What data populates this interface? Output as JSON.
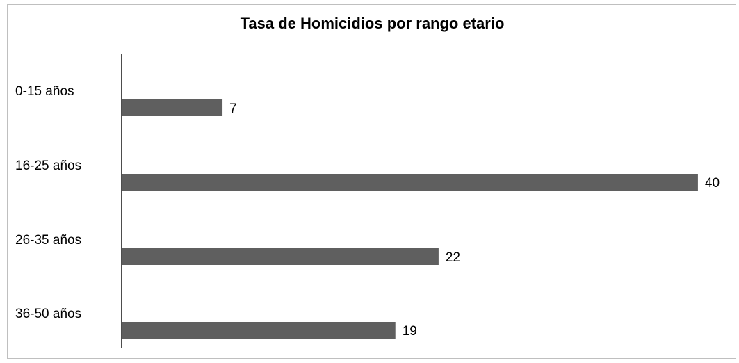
{
  "chart_data": {
    "type": "bar",
    "orientation": "horizontal",
    "title": "Tasa de Homicidios por rango etario",
    "categories": [
      "0-15 años",
      "16-25 años",
      "26-35 años",
      "36-50 años"
    ],
    "values": [
      7,
      40,
      22,
      19
    ],
    "xlim": [
      0,
      41.5
    ],
    "xlabel": "",
    "ylabel": "",
    "grid": false,
    "legend": "none",
    "data_labels": true,
    "colors": {
      "bar": "#5f5f5f",
      "axis": "#4d4d4d",
      "text": "#000000"
    }
  }
}
